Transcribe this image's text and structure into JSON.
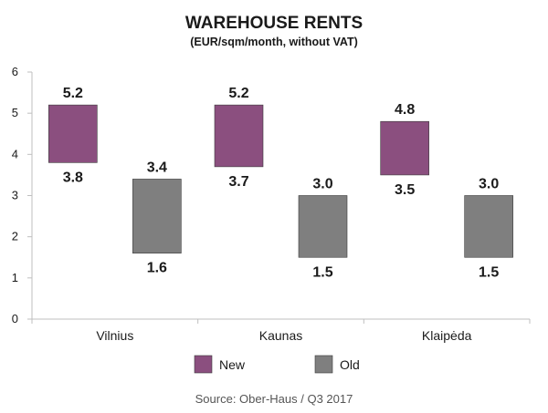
{
  "chart_data": {
    "type": "bar",
    "title": "WAREHOUSE RENTS",
    "subtitle": "(EUR/sqm/month, without VAT)",
    "categories": [
      "Vilnius",
      "Kaunas",
      "Klaipėda"
    ],
    "series": [
      {
        "name": "New",
        "low": [
          3.8,
          3.7,
          3.5
        ],
        "high": [
          5.2,
          5.2,
          4.8
        ],
        "low_labels": [
          "3.8",
          "3.7",
          "3.5"
        ],
        "high_labels": [
          "5.2",
          "5.2",
          "4.8"
        ]
      },
      {
        "name": "Old",
        "low": [
          1.6,
          1.5,
          1.5
        ],
        "high": [
          3.4,
          3.0,
          3.0
        ],
        "low_labels": [
          "1.6",
          "1.5",
          "1.5"
        ],
        "high_labels": [
          "3.4",
          "3.0",
          "3.0"
        ]
      }
    ],
    "ylim": [
      0,
      6
    ],
    "yticks": [
      "0",
      "1",
      "2",
      "3",
      "4",
      "5",
      "6"
    ],
    "grid": false,
    "legend": "bottom",
    "source": "Source: Ober-Haus / Q3 2017",
    "colors": {
      "New": "#8b4f7f",
      "Old": "#7f7f7f",
      "axis": "#bfbfbf"
    }
  }
}
